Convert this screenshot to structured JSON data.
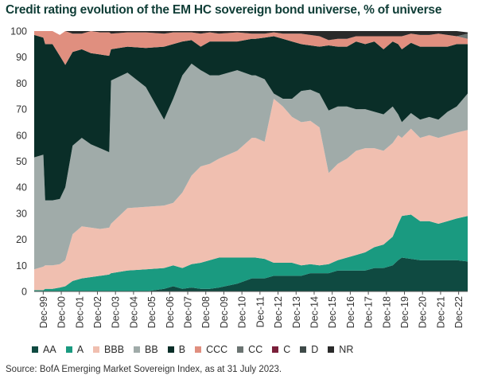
{
  "title": "Credit rating evolution of the EM HC sovereign bond universe, % of universe",
  "source": "Source: BofA Emerging Market Sovereign Index, as at 31 July 2023.",
  "chart_data": {
    "type": "area",
    "stacked": true,
    "title": "Credit rating evolution of the EM HC sovereign bond universe, % of universe",
    "xlabel": "",
    "ylabel": "",
    "ylim": [
      0,
      100
    ],
    "yticks": [
      0,
      10,
      20,
      30,
      40,
      50,
      60,
      70,
      80,
      90,
      100
    ],
    "x_tick_labels": [
      "Dec-99",
      "Dec-00",
      "Dec-01",
      "Dec-02",
      "Dec-03",
      "Dec-04",
      "Dec-05",
      "Dec-06",
      "Dec-07",
      "Dec-08",
      "Dec-09",
      "Dec-10",
      "Dec-11",
      "Dec-12",
      "Dec-13",
      "Dec-14",
      "Dec-15",
      "Dec-16",
      "Dec-17",
      "Dec-18",
      "Dec-19",
      "Dec-20",
      "Dec-21",
      "Dec-22"
    ],
    "x": [
      1999.9,
      2000.4,
      2000.5,
      2000.9,
      2001.3,
      2001.6,
      2002.0,
      2002.5,
      2003.0,
      2003.5,
      2004.0,
      2004.1,
      2005.0,
      2006.0,
      2007.0,
      2007.5,
      2008.0,
      2008.5,
      2009.0,
      2009.5,
      2010.0,
      2011.0,
      2011.8,
      2012.0,
      2012.5,
      2013.0,
      2013.5,
      2014.0,
      2014.5,
      2015.0,
      2015.5,
      2016.0,
      2016.5,
      2017.0,
      2017.5,
      2018.0,
      2018.5,
      2019.0,
      2019.5,
      2019.8,
      2020.0,
      2020.5,
      2021.0,
      2021.5,
      2022.0,
      2022.5,
      2023.0,
      2023.6
    ],
    "series": [
      {
        "name": "AA",
        "color": "#0f4a41",
        "values": [
          0,
          0,
          0,
          0,
          0,
          0,
          0,
          0,
          0,
          0,
          0,
          0,
          0,
          0,
          1,
          2,
          1,
          1.5,
          1,
          1,
          1.5,
          3,
          5,
          5,
          5,
          6,
          6,
          6,
          6,
          7,
          7,
          7,
          8,
          8,
          8,
          8,
          9,
          9,
          10,
          12,
          13,
          12.5,
          12,
          12,
          12,
          12,
          12,
          11.5
        ]
      },
      {
        "name": "A",
        "color": "#1a9a80",
        "values": [
          0.5,
          0.5,
          1,
          1,
          1.5,
          2,
          4,
          5,
          5.5,
          6,
          6.5,
          7,
          8,
          8.5,
          8,
          8,
          8,
          9,
          10,
          11,
          11.5,
          10,
          8,
          8,
          7.5,
          5,
          5,
          5,
          4,
          3.5,
          3,
          3.5,
          4,
          5,
          6,
          7,
          8,
          9,
          11,
          14,
          16,
          17,
          15,
          15,
          14,
          15,
          16,
          17.5
        ]
      },
      {
        "name": "BBB",
        "color": "#f0bfb0",
        "values": [
          8,
          9,
          9,
          9,
          9,
          10,
          18,
          20,
          19,
          18,
          18,
          19,
          24,
          24,
          24,
          24,
          29,
          34,
          37,
          37,
          38,
          41,
          46,
          46,
          45,
          63,
          60,
          56,
          55,
          55,
          53,
          35,
          37,
          38,
          40,
          40,
          38,
          36,
          36,
          34,
          30,
          33,
          32,
          33,
          33,
          33,
          33,
          33
        ]
      },
      {
        "name": "BB",
        "color": "#a0aba9",
        "values": [
          43,
          43,
          25,
          25,
          25,
          28,
          34,
          34,
          32,
          31,
          29,
          55,
          52,
          46,
          33,
          40,
          45,
          43,
          37,
          34,
          32,
          31,
          24,
          24,
          24,
          2,
          3,
          7,
          12,
          12,
          13,
          24,
          22,
          20,
          16,
          15,
          14,
          14,
          14,
          8,
          6,
          6,
          7,
          7,
          7,
          9,
          10,
          14
        ]
      },
      {
        "name": "B",
        "color": "#0a2e28",
        "values": [
          47,
          45,
          60,
          60,
          55,
          47,
          36,
          34,
          35,
          36,
          37,
          12,
          10,
          15,
          28,
          21,
          13,
          9,
          9,
          13,
          13,
          11,
          14,
          14,
          16,
          22,
          23,
          22,
          18,
          17,
          18,
          25,
          23,
          23,
          26,
          25,
          27,
          25,
          25,
          27,
          28,
          27,
          28,
          27,
          28,
          25,
          24,
          19
        ]
      },
      {
        "name": "CCC",
        "color": "#e08f7f",
        "values": [
          1.5,
          2.5,
          5,
          5,
          8,
          13,
          7,
          6,
          8.5,
          8.5,
          9,
          6,
          5.5,
          6,
          5,
          4.5,
          3.5,
          3,
          5,
          3.5,
          3,
          3.5,
          2,
          2,
          1.5,
          1.5,
          2,
          3,
          4,
          4,
          4,
          2,
          3,
          3,
          2,
          3,
          2,
          5,
          2,
          3,
          5,
          3.5,
          4.5,
          4.5,
          5,
          4.5,
          3,
          2
        ]
      },
      {
        "name": "CC",
        "color": "#6b7472",
        "values": [
          0,
          0,
          0,
          0,
          0,
          0,
          0,
          0,
          0,
          0,
          0,
          0,
          0,
          0,
          0,
          0,
          0,
          0,
          0,
          0,
          0,
          0,
          0,
          0,
          0,
          0,
          0,
          0,
          0,
          0,
          0,
          0,
          0,
          0,
          0,
          0,
          0,
          0,
          0,
          0,
          0,
          0,
          0,
          0,
          0,
          0,
          0,
          2
        ]
      },
      {
        "name": "C",
        "color": "#7a1f3a",
        "values": [
          0,
          0,
          0,
          0,
          0,
          0,
          0,
          0,
          0,
          0,
          0,
          0,
          0,
          0,
          0,
          0,
          0,
          0,
          0,
          0,
          0,
          0,
          0,
          0,
          0,
          0,
          0,
          0,
          0,
          0,
          0,
          0,
          0,
          0,
          0,
          0,
          0,
          0,
          0,
          0,
          0,
          0,
          0,
          0,
          0,
          0,
          0,
          0
        ]
      },
      {
        "name": "D",
        "color": "#3e4a48",
        "values": [
          0,
          0,
          0,
          0,
          0,
          0,
          0,
          0,
          0,
          0,
          0,
          0,
          0,
          0,
          0,
          0,
          0,
          0,
          0,
          0,
          0,
          0,
          0,
          0,
          0,
          0,
          0,
          0,
          0,
          0,
          0,
          0,
          0,
          0,
          0,
          0,
          0,
          0,
          0,
          0,
          0,
          0,
          0,
          0,
          0,
          0,
          0,
          0
        ]
      },
      {
        "name": "NR",
        "color": "#2a2a2a",
        "values": [
          0,
          0,
          0,
          0,
          0,
          0,
          1,
          1,
          0,
          0.5,
          0.5,
          1,
          0.5,
          0.5,
          1,
          0.5,
          0.5,
          0.5,
          1,
          0.5,
          1,
          0.5,
          1,
          1,
          1,
          0.5,
          1,
          1,
          1,
          1.5,
          2,
          3.5,
          3,
          3,
          2,
          2,
          2,
          2,
          2,
          2,
          2,
          1,
          1.5,
          1.5,
          1,
          1.5,
          2,
          0.5
        ]
      }
    ],
    "legend_position": "bottom",
    "grid": false
  }
}
